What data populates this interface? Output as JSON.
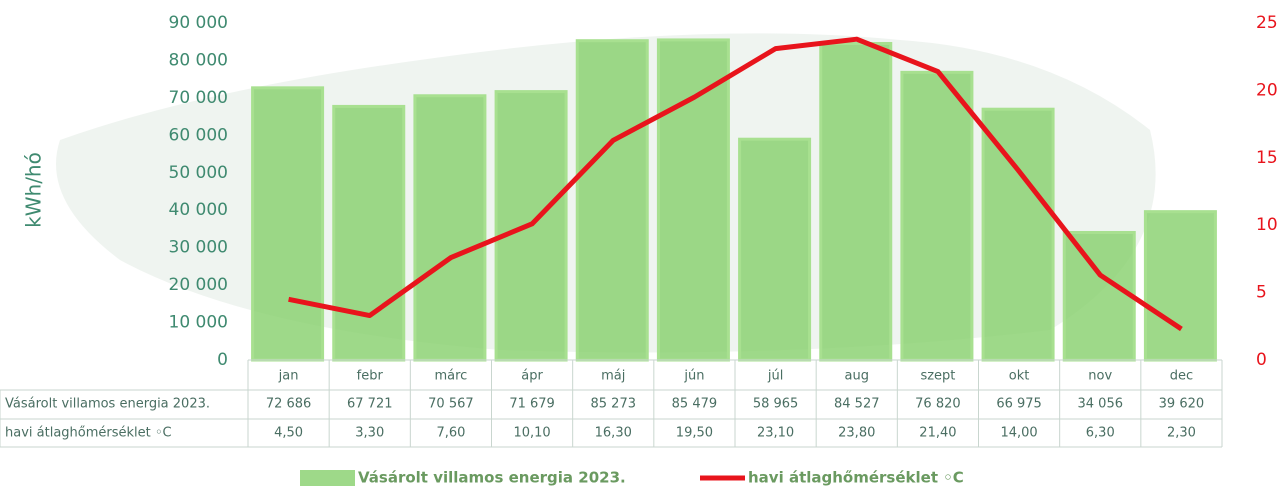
{
  "chart_data": {
    "type": "bar",
    "y_label": "kWh/hó",
    "categories": [
      "jan",
      "febr",
      "márc",
      "ápr",
      "máj",
      "jún",
      "júl",
      "aug",
      "szept",
      "okt",
      "nov",
      "dec"
    ],
    "series": [
      {
        "name": "Vásárolt villamos energia 2023.",
        "type": "bar",
        "color": "#86cf6c",
        "values": [
          72686,
          67721,
          70567,
          71679,
          85273,
          85479,
          58965,
          84527,
          76820,
          66975,
          34056,
          39620
        ],
        "value_labels": [
          "72 686",
          "67 721",
          "70 567",
          "71 679",
          "85 273",
          "85 479",
          "58 965",
          "84 527",
          "76 820",
          "66 975",
          "34 056",
          "39 620"
        ]
      },
      {
        "name": "havi átlaghőmérséklet ◦C",
        "type": "line",
        "axis": "y2",
        "color": "#e8141c",
        "values": [
          4.5,
          3.3,
          7.6,
          10.1,
          16.3,
          19.5,
          23.1,
          23.8,
          21.4,
          14.0,
          6.3,
          2.3
        ],
        "value_labels": [
          "4,50",
          "3,30",
          "7,60",
          "10,10",
          "16,30",
          "19,50",
          "23,10",
          "23,80",
          "21,40",
          "14,00",
          "6,30",
          "2,30"
        ]
      }
    ],
    "ylim": [
      0,
      90000
    ],
    "yticks": [
      0,
      {
        "value": 10000,
        "label": "10 000"
      },
      {
        "value": 20000,
        "label": "20 000"
      },
      {
        "value": 30000,
        "label": "30 000"
      },
      {
        "value": 40000,
        "label": "40 000"
      },
      {
        "value": 50000,
        "label": "50 000"
      },
      {
        "value": 60000,
        "label": "60 000"
      },
      {
        "value": 70000,
        "label": "70 000"
      },
      {
        "value": 80000,
        "label": "80 000"
      },
      {
        "value": 90000,
        "label": "90 000"
      }
    ],
    "y2lim": [
      0,
      25
    ],
    "y2ticks": [
      0,
      5,
      10,
      15,
      20,
      25
    ],
    "legend": "bottom"
  }
}
